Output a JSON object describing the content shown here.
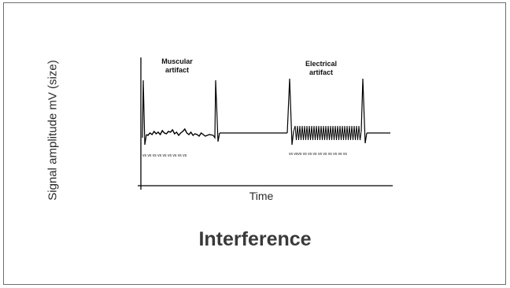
{
  "diagram": {
    "y_axis_label": "Signal amplitude mV (size)",
    "x_axis_label": "Time",
    "annotation_muscular": "Muscular artifact",
    "annotation_electrical": "Electrical artifact",
    "vs_muscular": "vs vs    vs   vs vs vs      vs vs   vs",
    "vs_electrical": "vs vsvs vs vs vs vs vs vs vs vs    vs"
  },
  "title": "Interference"
}
